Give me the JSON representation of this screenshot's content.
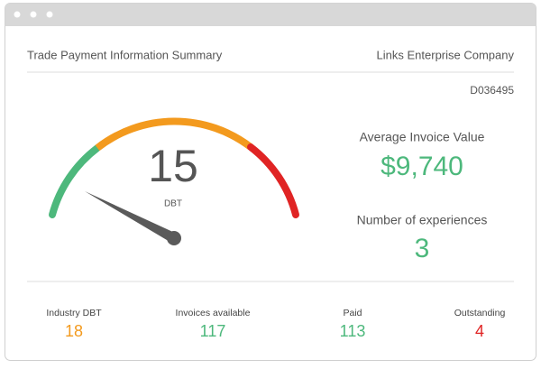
{
  "header": {
    "title": "Trade Payment Information Summary",
    "company": "Links Enterprise Company",
    "id": "D036495"
  },
  "gauge": {
    "value": 15,
    "unit": "DBT"
  },
  "stats": [
    {
      "label": "Average Invoice Value",
      "value": "$9,740"
    },
    {
      "label": "Number of experiences",
      "value": 3
    }
  ],
  "footer": [
    {
      "label": "Industry DBT",
      "value": 18
    },
    {
      "label": "Invoices available",
      "value": 117
    },
    {
      "label": "Paid",
      "value": 113
    },
    {
      "label": "Outstanding",
      "value": 4
    }
  ]
}
